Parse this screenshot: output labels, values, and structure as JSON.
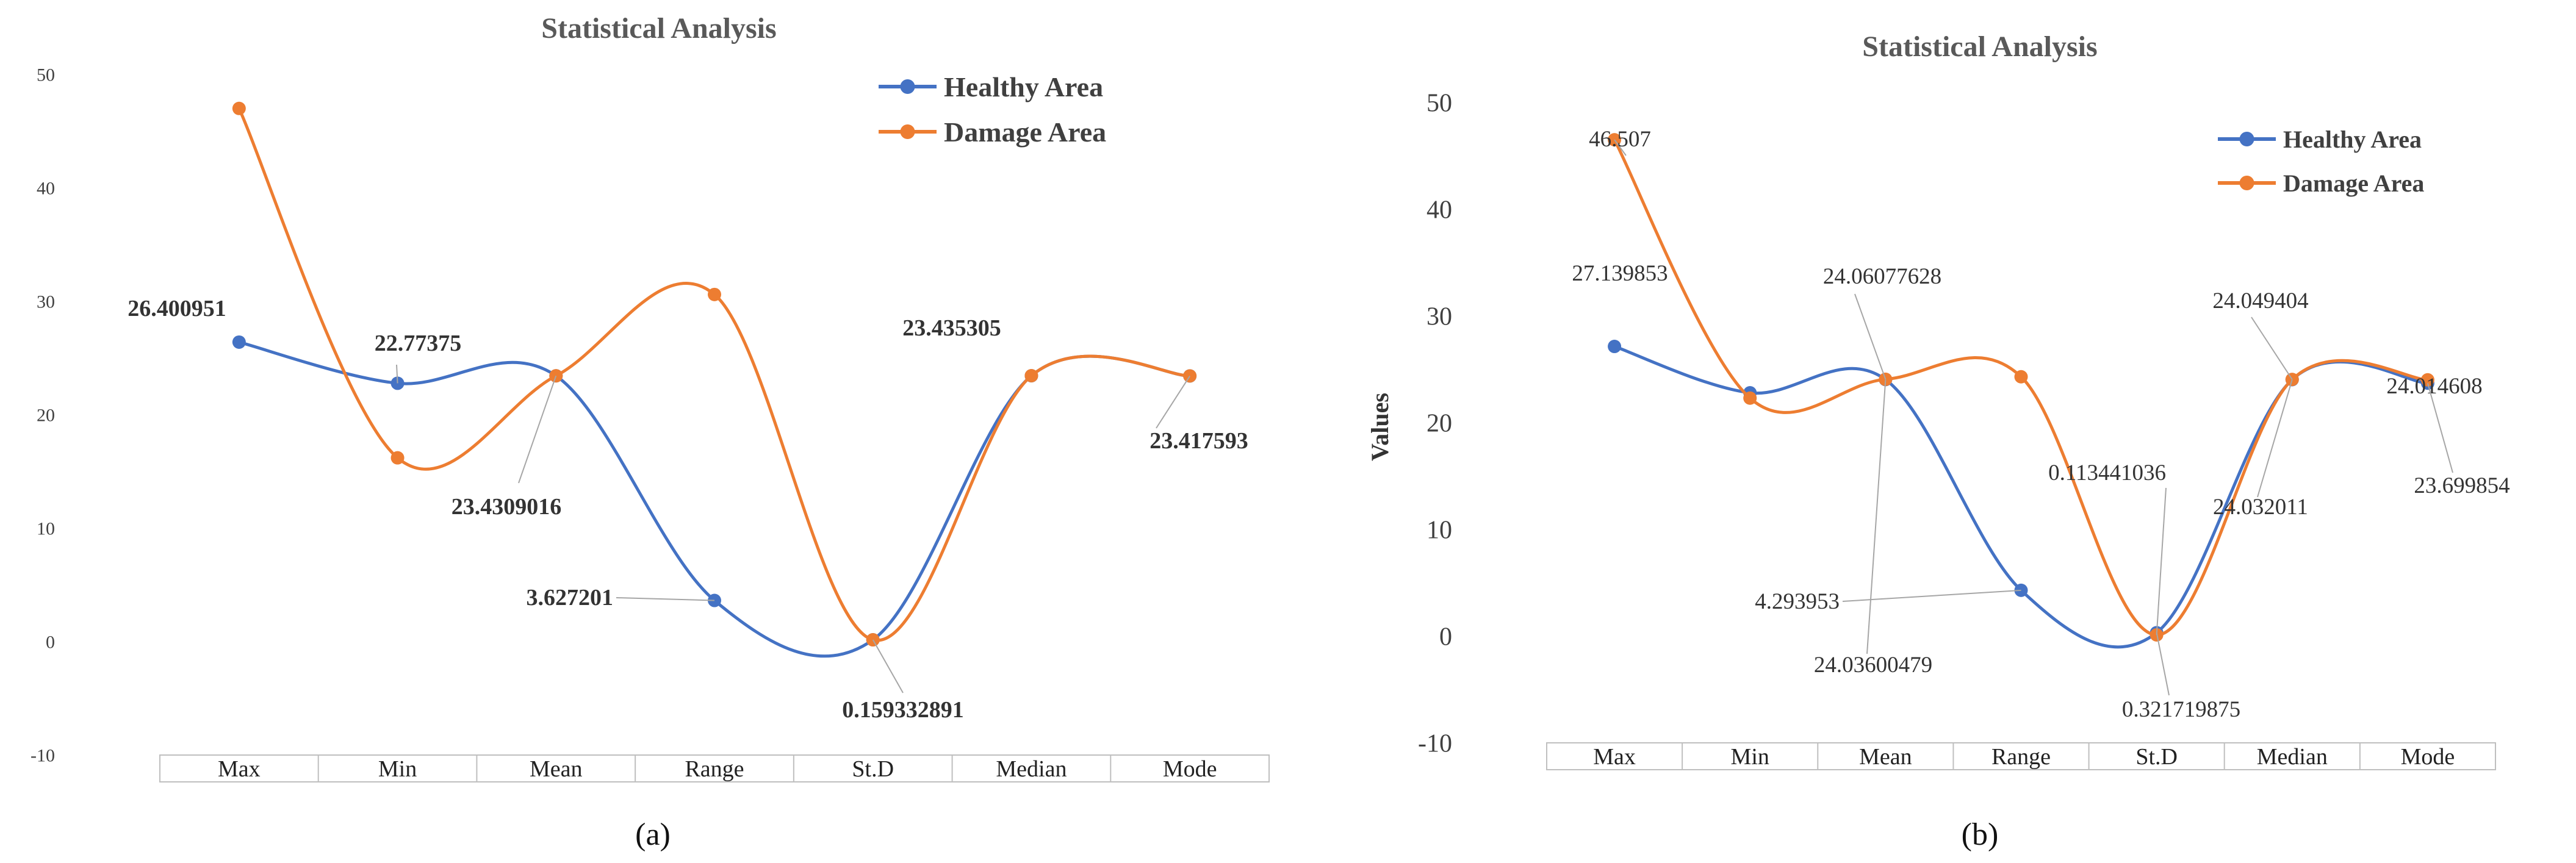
{
  "panels": [
    {
      "id": "a",
      "panel_label": "(a)",
      "title": "Statistical Analysis",
      "ylabel": "",
      "y_ticks": [
        "50",
        "40",
        "30",
        "20",
        "10",
        "0",
        "-10"
      ],
      "legend": [
        "Healthy Area",
        "Damage Area"
      ],
      "data_labels": [
        "26.400951",
        "22.77375",
        "23.4309016",
        "3.627201",
        "0.159332891",
        "23.435305",
        "23.417593"
      ]
    },
    {
      "id": "b",
      "panel_label": "(b)",
      "title": "Statistical Analysis",
      "ylabel": "Values",
      "y_ticks": [
        "50",
        "40",
        "30",
        "20",
        "10",
        "0",
        "-10"
      ],
      "legend": [
        "Healthy Area",
        "Damage Area"
      ],
      "data_labels": [
        "46.507",
        "27.139853",
        "24.06077628",
        "24.03600479",
        "4.293953",
        "0.113441036",
        "0.321719875",
        "24.049404",
        "24.032011",
        "24.014608",
        "23.699854"
      ]
    }
  ],
  "chart_data": [
    {
      "type": "line",
      "title": "Statistical Analysis",
      "xlabel": "",
      "ylabel": "",
      "categories": [
        "Max",
        "Min",
        "Mean",
        "Range",
        "St.D",
        "Median",
        "Mode"
      ],
      "ylim": [
        -10,
        50
      ],
      "legend_position": "top-right",
      "series": [
        {
          "name": "Healthy Area",
          "color": "#4472C4",
          "values": [
            26.400951,
            22.77375,
            23.43,
            3.627201,
            0.16,
            23.435305,
            23.417593
          ]
        },
        {
          "name": "Damage Area",
          "color": "#ED7D31",
          "values": [
            47.0,
            16.2,
            23.4309016,
            30.6,
            0.159332891,
            23.44,
            23.42
          ]
        }
      ]
    },
    {
      "type": "line",
      "title": "Statistical Analysis",
      "xlabel": "",
      "ylabel": "Values",
      "categories": [
        "Max",
        "Min",
        "Mean",
        "Range",
        "St.D",
        "Median",
        "Mode"
      ],
      "ylim": [
        -10,
        50
      ],
      "legend_position": "top-right",
      "series": [
        {
          "name": "Healthy Area",
          "color": "#4472C4",
          "values": [
            27.139853,
            22.8,
            24.03600479,
            4.293953,
            0.321719875,
            24.032011,
            23.699854
          ]
        },
        {
          "name": "Damage Area",
          "color": "#ED7D31",
          "values": [
            46.507,
            22.3,
            24.06077628,
            24.3,
            0.113441036,
            24.049404,
            24.014608
          ]
        }
      ]
    }
  ]
}
